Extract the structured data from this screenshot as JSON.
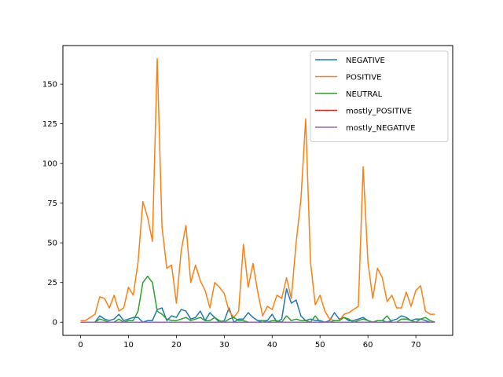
{
  "chart_data": {
    "type": "line",
    "title": "",
    "xlabel": "",
    "ylabel": "",
    "xlim": [
      -3.7,
      77.7
    ],
    "ylim": [
      -8.3,
      174.3
    ],
    "x_ticks": [
      0,
      10,
      20,
      30,
      40,
      50,
      60,
      70
    ],
    "y_ticks": [
      0,
      25,
      50,
      75,
      100,
      125,
      150
    ],
    "grid": false,
    "legend_position": "upper right",
    "series": [
      {
        "name": "NEGATIVE",
        "color": "#1f77b4",
        "values": [
          0,
          0,
          0,
          0,
          4,
          2,
          1,
          2,
          5,
          1,
          2,
          3,
          3,
          0,
          1,
          1,
          8,
          9,
          1,
          4,
          3,
          8,
          7,
          2,
          3,
          7,
          1,
          6,
          3,
          0,
          1,
          9,
          0,
          2,
          2,
          6,
          3,
          1,
          1,
          1,
          5,
          0,
          2,
          21,
          12,
          14,
          4,
          1,
          2,
          1,
          1,
          0,
          1,
          6,
          2,
          3,
          1,
          1,
          2,
          3,
          1,
          0,
          1,
          1,
          0,
          1,
          2,
          4,
          3,
          1,
          2,
          2,
          1,
          0,
          0
        ]
      },
      {
        "name": "POSITIVE",
        "color": "#ff7f0e",
        "values": [
          1,
          1,
          3,
          5,
          16,
          15,
          9,
          17,
          7,
          9,
          22,
          17,
          38,
          76,
          66,
          51,
          166,
          60,
          34,
          36,
          12,
          45,
          61,
          25,
          36,
          26,
          20,
          9,
          25,
          22,
          18,
          7,
          3,
          7,
          49,
          22,
          37,
          19,
          4,
          10,
          8,
          17,
          15,
          28,
          15,
          50,
          77,
          128,
          38,
          11,
          17,
          7,
          2,
          1,
          1,
          5,
          6,
          8,
          10,
          98,
          38,
          15,
          34,
          28,
          13,
          17,
          9,
          9,
          19,
          10,
          20,
          23,
          7,
          5,
          5
        ]
      },
      {
        "name": "NEUTRAL",
        "color": "#2ca02c",
        "values": [
          0,
          0,
          0,
          0,
          2,
          1,
          0,
          0,
          2,
          0,
          1,
          1,
          7,
          25,
          29,
          25,
          7,
          5,
          2,
          1,
          1,
          2,
          3,
          1,
          2,
          3,
          1,
          1,
          3,
          1,
          0,
          2,
          3,
          1,
          1,
          0,
          0,
          0,
          1,
          0,
          1,
          1,
          0,
          4,
          1,
          2,
          1,
          1,
          0,
          4,
          0,
          0,
          0,
          1,
          1,
          3,
          2,
          0,
          1,
          2,
          1,
          0,
          1,
          1,
          4,
          0,
          0,
          2,
          2,
          1,
          0,
          2,
          3,
          1,
          0
        ]
      },
      {
        "name": "mostly_POSITIVE",
        "color": "#d62728",
        "values": [
          0,
          0,
          0,
          0,
          0,
          0,
          0,
          0,
          0,
          0,
          0,
          0,
          0,
          0,
          0,
          0,
          0,
          0,
          0,
          0,
          0,
          0,
          0,
          0,
          0,
          0,
          0,
          0,
          0,
          0,
          0,
          0,
          0,
          0,
          0,
          0,
          0,
          0,
          0,
          0,
          0,
          0,
          0,
          0,
          0,
          0,
          0,
          0,
          0,
          0,
          0,
          0,
          0,
          0,
          0,
          0,
          0,
          0,
          0,
          0,
          0,
          0,
          0,
          0,
          0,
          0,
          0,
          0,
          0,
          0,
          0,
          0,
          0,
          0,
          0
        ]
      },
      {
        "name": "mostly_NEGATIVE",
        "color": "#9467bd",
        "values": [
          0,
          0,
          0,
          0,
          0,
          0,
          0,
          0,
          0,
          0,
          0,
          0,
          0,
          0,
          0,
          0,
          0,
          0,
          0,
          0,
          0,
          0,
          0,
          0,
          0,
          0,
          0,
          0,
          0,
          0,
          0,
          0,
          0,
          0,
          0,
          0,
          0,
          0,
          0,
          0,
          0,
          0,
          0,
          0,
          0,
          0,
          0,
          0,
          0,
          0,
          0,
          0,
          0,
          0,
          0,
          0,
          0,
          0,
          0,
          0,
          0,
          0,
          0,
          0,
          0,
          0,
          0,
          0,
          0,
          0,
          0,
          0,
          0,
          0,
          0
        ]
      }
    ]
  }
}
